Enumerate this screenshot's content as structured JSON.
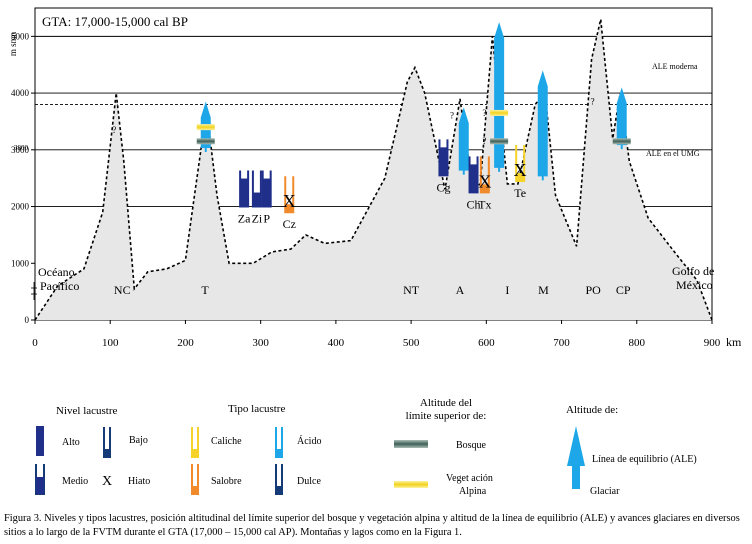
{
  "figure": {
    "title": "GTA: 17,000-15,000   cal BP",
    "y_axis_label": "m snm",
    "x_unit": "km",
    "ale_moderna_label": "ALE moderna",
    "ale_umg_label": "ALE en el UMG",
    "y_3800_label": "3800",
    "ocean_label": "Océano\nPacífico",
    "gulf_label": "Golfo de\nMéxico",
    "question_mark": "?",
    "hiatus_symbol": "X"
  },
  "chart_data": {
    "type": "area",
    "title": "GTA: 17,000-15,000   cal BP",
    "xlabel": "km",
    "ylabel": "m snm",
    "xlim": [
      0,
      900
    ],
    "ylim": [
      0,
      5500
    ],
    "x_ticks": [
      0,
      100,
      200,
      300,
      400,
      500,
      600,
      700,
      800,
      900
    ],
    "y_ticks": [
      0,
      1000,
      2000,
      3000,
      4000,
      5000
    ],
    "reference_lines": [
      {
        "label": "ALE moderna",
        "y": 5000,
        "style": "solid"
      },
      {
        "label": "",
        "y": 4000,
        "style": "solid"
      },
      {
        "label": "ALE en el UMG",
        "y": 3800,
        "style": "dashed"
      },
      {
        "label": "",
        "y": 3000,
        "style": "solid"
      },
      {
        "label": "",
        "y": 2000,
        "style": "solid"
      }
    ],
    "profile": [
      [
        0,
        0
      ],
      [
        30,
        600
      ],
      [
        65,
        900
      ],
      [
        90,
        1900
      ],
      [
        108,
        4000
      ],
      [
        118,
        2800
      ],
      [
        132,
        550
      ],
      [
        150,
        850
      ],
      [
        175,
        900
      ],
      [
        200,
        1050
      ],
      [
        212,
        2200
      ],
      [
        228,
        3700
      ],
      [
        242,
        2200
      ],
      [
        258,
        1000
      ],
      [
        290,
        1000
      ],
      [
        315,
        1200
      ],
      [
        340,
        1250
      ],
      [
        360,
        1500
      ],
      [
        385,
        1350
      ],
      [
        420,
        1400
      ],
      [
        465,
        2500
      ],
      [
        495,
        4200
      ],
      [
        505,
        4450
      ],
      [
        518,
        4000
      ],
      [
        545,
        2300
      ],
      [
        565,
        3900
      ],
      [
        582,
        2300
      ],
      [
        592,
        2400
      ],
      [
        608,
        5000
      ],
      [
        628,
        2400
      ],
      [
        642,
        2400
      ],
      [
        665,
        3800
      ],
      [
        678,
        4000
      ],
      [
        692,
        2200
      ],
      [
        720,
        1300
      ],
      [
        740,
        4600
      ],
      [
        752,
        5300
      ],
      [
        768,
        3200
      ],
      [
        778,
        4000
      ],
      [
        790,
        2800
      ],
      [
        815,
        1800
      ],
      [
        850,
        1200
      ],
      [
        880,
        700
      ],
      [
        900,
        0
      ]
    ],
    "mountains": [
      {
        "label": "NC",
        "x": 116
      },
      {
        "label": "T",
        "x": 226
      },
      {
        "label": "NT",
        "x": 500
      },
      {
        "label": "A",
        "x": 565
      },
      {
        "label": "I",
        "x": 628
      },
      {
        "label": "M",
        "x": 676
      },
      {
        "label": "PO",
        "x": 742
      },
      {
        "label": "CP",
        "x": 782
      }
    ],
    "glaciers": [
      {
        "site": "T",
        "x": 227,
        "ale": 3350,
        "top": 3850
      },
      {
        "site": "A",
        "x": 570,
        "ale": 2950,
        "top": 3750
      },
      {
        "site": "I",
        "x": 617,
        "ale": 3000,
        "top": 5250
      },
      {
        "site": "M",
        "x": 675,
        "ale": 2850,
        "top": 4400
      },
      {
        "site": "CP",
        "x": 780,
        "ale": 3400,
        "top": 4100
      }
    ],
    "treelines": [
      {
        "site": "T",
        "x": 227,
        "y": 3150
      },
      {
        "site": "I",
        "x": 617,
        "y": 3150
      },
      {
        "site": "CP",
        "x": 780,
        "y": 3150
      }
    ],
    "alpine_lines": [
      {
        "site": "T",
        "x": 227,
        "y": 3400
      },
      {
        "site": "I",
        "x": 617,
        "y": 3650
      }
    ],
    "lakes": [
      {
        "label": "Za",
        "x": 278,
        "elev": 2000,
        "type": "Dulce",
        "level": "Alto"
      },
      {
        "label": "Zi",
        "x": 295,
        "elev": 2000,
        "type": "Dulce",
        "level": "Medio"
      },
      {
        "label": "P",
        "x": 308,
        "elev": 2000,
        "type": "Dulce",
        "level": "Alto"
      },
      {
        "label": "Cz",
        "x": 338,
        "elev": 1900,
        "type": "Salobre",
        "level": "Hiato"
      },
      {
        "label": "Cg",
        "x": 543,
        "elev": 2550,
        "type": "Dulce",
        "level": "Alto"
      },
      {
        "label": "Ch",
        "x": 583,
        "elev": 2250,
        "type": "Dulce",
        "level": "Alto"
      },
      {
        "label": "Tx",
        "x": 598,
        "elev": 2250,
        "type": "Salobre",
        "level": "Hiato"
      },
      {
        "label": "Te",
        "x": 645,
        "elev": 2450,
        "type": "Caliche",
        "level": "Hiato"
      }
    ]
  },
  "legend": {
    "level_title": "Nivel lacustre",
    "level_alto": "Alto",
    "level_bajo": "Bajo",
    "level_medio": "Medio",
    "level_hiato": "Hiato",
    "type_title": "Tipo lacustre",
    "type_caliche": "Caliche",
    "type_salobre": "Salobre",
    "type_acido": "Ácido",
    "type_dulce": "Dulce",
    "altitude_limit_title_1": "Altitude del",
    "altitude_limit_title_2": "límite superior  de:",
    "bosque_label": "Bosque",
    "vegetacion_label_1": "Veget ación",
    "vegetacion_label_2": "Alpina",
    "altitude_title": "Altitude de:",
    "ale_label": "Línea  de  equilibrio  (ALE)",
    "glaciar_label": "Glaciar"
  },
  "colors": {
    "navy": "#1f2f8a",
    "deep_blue": "#153a78",
    "sky": "#1ea7e8",
    "orange": "#f08a2a",
    "yellow": "#f5d32a",
    "treeline": "#4f6f67",
    "fill": "#e7e7e7"
  },
  "caption": "Figura 3. Niveles y tipos lacustres, posición altitudinal del límite superior del bosque y vegetación alpina y altitud de la línea de equilibrio (ALE) y avances glaciares en diversos sitios a lo largo de la FVTM durante el GTA (17,000 – 15,000 cal AP). Montañas y lagos como en la Figura 1."
}
